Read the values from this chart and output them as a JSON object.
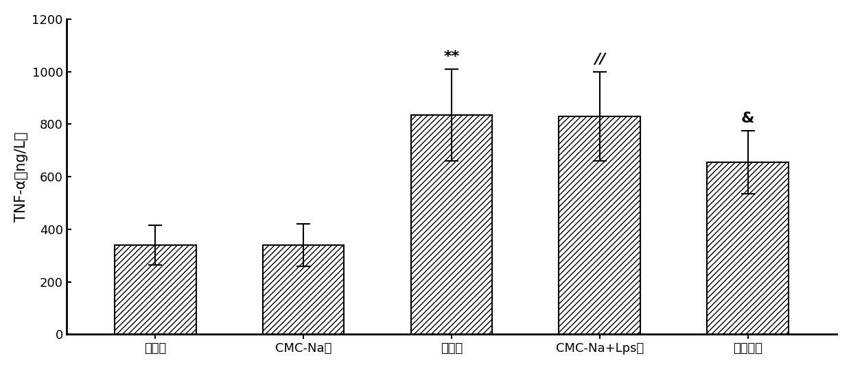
{
  "categories": [
    "空白组",
    "CMC-Na组",
    "模型组",
    "CMC-Na+Lps组",
    "脂肪油组"
  ],
  "values": [
    340,
    340,
    835,
    830,
    655
  ],
  "errors": [
    75,
    80,
    175,
    170,
    120
  ],
  "annotations": [
    "",
    "",
    "**",
    "//",
    "&"
  ],
  "annotation_offsets": [
    0,
    0,
    20,
    20,
    20
  ],
  "ylabel": "TNF-α（ng/L）",
  "ylim": [
    0,
    1200
  ],
  "yticks": [
    0,
    200,
    400,
    600,
    800,
    1000,
    1200
  ],
  "bar_color": "white",
  "hatch": "////",
  "bar_width": 0.55,
  "figsize": [
    12.4,
    5.39
  ],
  "dpi": 100,
  "background_color": "#ffffff",
  "annotation_fontsize": 16,
  "tick_fontsize": 13,
  "ylabel_fontsize": 15,
  "spine_linewidth": 2.0
}
